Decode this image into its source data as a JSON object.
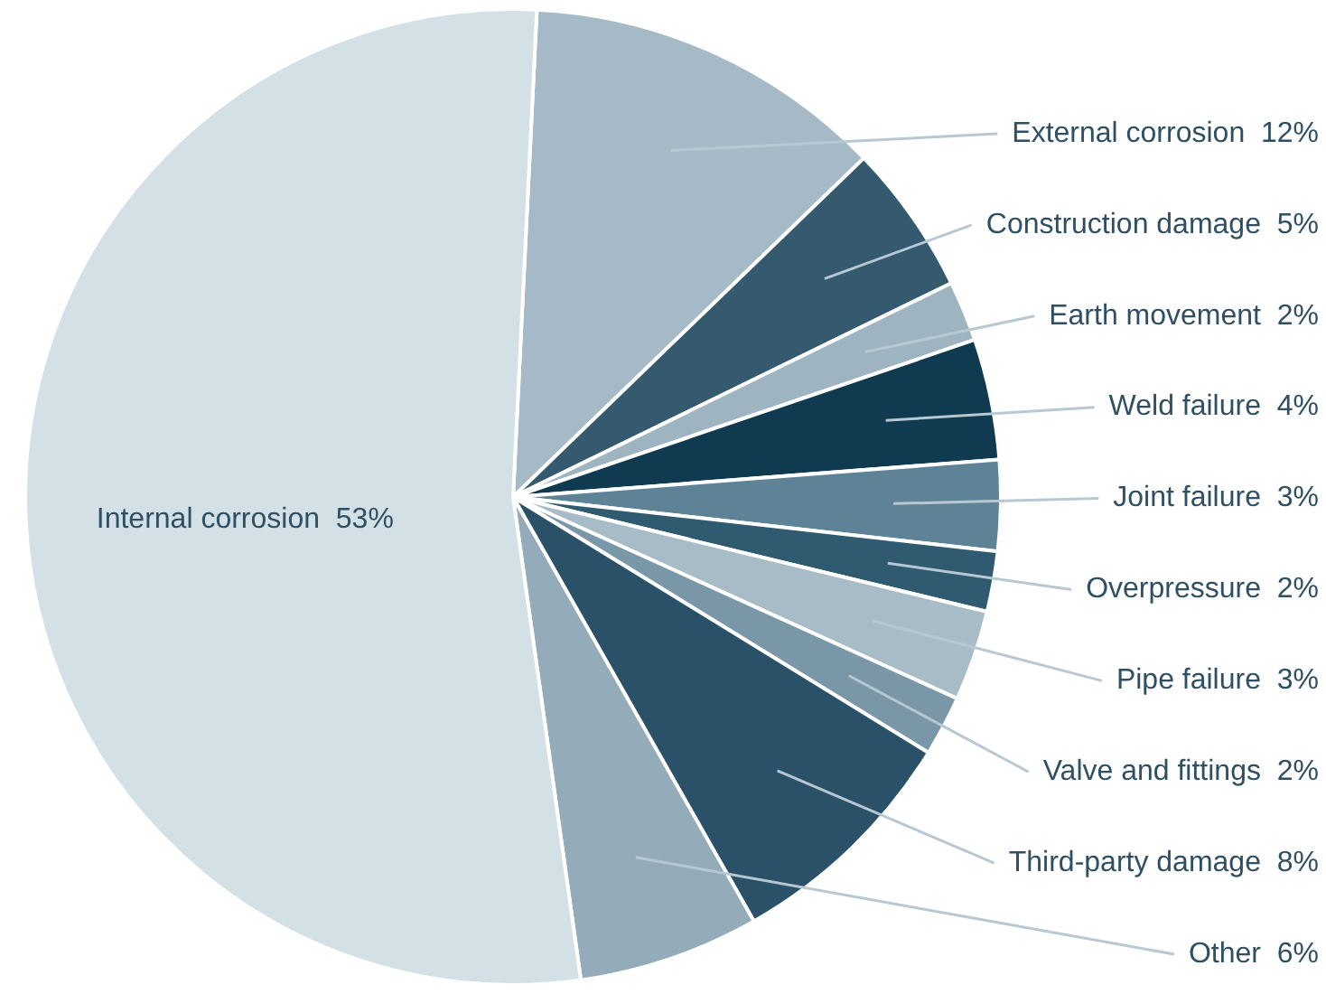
{
  "chart_data": {
    "type": "pie",
    "categories": [
      "External corrosion",
      "Construction damage",
      "Earth movement",
      "Weld failure",
      "Joint failure",
      "Overpressure",
      "Pipe failure",
      "Valve and fittings",
      "Third-party damage",
      "Other",
      "Internal corrosion"
    ],
    "values": [
      12,
      5,
      2,
      4,
      3,
      2,
      3,
      2,
      8,
      6,
      53
    ],
    "value_labels": [
      "12%",
      "5%",
      "2%",
      "4%",
      "3%",
      "2%",
      "3%",
      "2%",
      "8%",
      "6%",
      "53%"
    ],
    "colors": [
      "#a5bac6",
      "#355a70",
      "#9fb4c1",
      "#0f3a50",
      "#5f8396",
      "#2f5a70",
      "#a8bcc8",
      "#7a97a8",
      "#2a5168",
      "#94abb9",
      "#d3e0e5"
    ],
    "legend": false
  }
}
